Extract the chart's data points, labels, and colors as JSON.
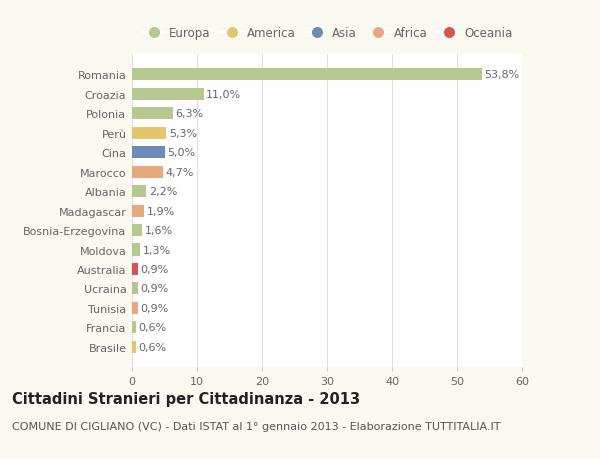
{
  "categories": [
    "Romania",
    "Croazia",
    "Polonia",
    "Perù",
    "Cina",
    "Marocco",
    "Albania",
    "Madagascar",
    "Bosnia-Erzegovina",
    "Moldova",
    "Australia",
    "Ucraina",
    "Tunisia",
    "Francia",
    "Brasile"
  ],
  "values": [
    53.8,
    11.0,
    6.3,
    5.3,
    5.0,
    4.7,
    2.2,
    1.9,
    1.6,
    1.3,
    0.9,
    0.9,
    0.9,
    0.6,
    0.6
  ],
  "labels": [
    "53,8%",
    "11,0%",
    "6,3%",
    "5,3%",
    "5,0%",
    "4,7%",
    "2,2%",
    "1,9%",
    "1,6%",
    "1,3%",
    "0,9%",
    "0,9%",
    "0,9%",
    "0,6%",
    "0,6%"
  ],
  "colors": [
    "#b5c98e",
    "#b5c98e",
    "#b5c98e",
    "#e8c46a",
    "#6b8cba",
    "#e8a87c",
    "#b5c98e",
    "#e8a87c",
    "#b5c98e",
    "#b5c98e",
    "#d9534f",
    "#b5c98e",
    "#e8a87c",
    "#b5c98e",
    "#e8c46a"
  ],
  "continent_colors": {
    "Europa": "#b5c98e",
    "America": "#e8c46a",
    "Asia": "#6b8cba",
    "Africa": "#e8a87c",
    "Oceania": "#d9534f"
  },
  "legend_order": [
    "Europa",
    "America",
    "Asia",
    "Africa",
    "Oceania"
  ],
  "xlim": [
    0,
    60
  ],
  "xticks": [
    0,
    10,
    20,
    30,
    40,
    50,
    60
  ],
  "title": "Cittadini Stranieri per Cittadinanza - 2013",
  "subtitle": "COMUNE DI CIGLIANO (VC) - Dati ISTAT al 1° gennaio 2013 - Elaborazione TUTTITALIA.IT",
  "bg_color": "#f9f9f0",
  "plot_bg_color": "#ffffff",
  "bar_height": 0.62,
  "label_fontsize": 8,
  "tick_fontsize": 8,
  "title_fontsize": 10.5,
  "subtitle_fontsize": 8
}
